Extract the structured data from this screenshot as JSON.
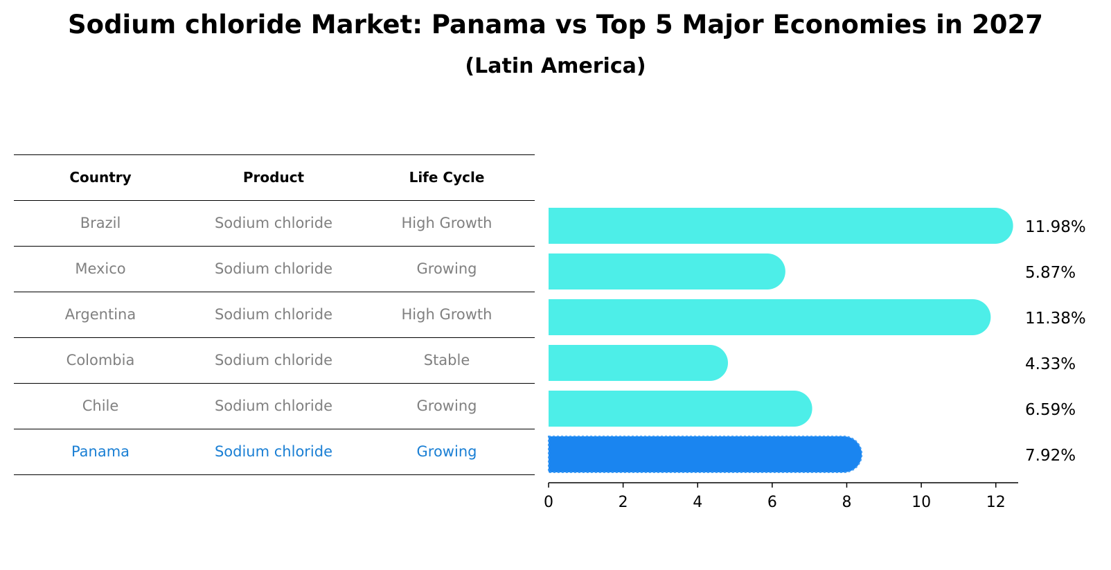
{
  "title": "Sodium chloride Market: Panama vs Top 5 Major Economies in 2027",
  "subtitle": "(Latin America)",
  "colors": {
    "bar": "#4deee8",
    "highlight_bar": "#1a85f0",
    "highlight_text": "#1a7fd4",
    "row_text": "#808080"
  },
  "table": {
    "headers": [
      "Country",
      "Product",
      "Life Cycle"
    ],
    "rows": [
      {
        "country": "Brazil",
        "product": "Sodium chloride",
        "life_cycle": "High Growth"
      },
      {
        "country": "Mexico",
        "product": "Sodium chloride",
        "life_cycle": "Growing"
      },
      {
        "country": "Argentina",
        "product": "Sodium chloride",
        "life_cycle": "High Growth"
      },
      {
        "country": "Colombia",
        "product": "Sodium chloride",
        "life_cycle": "Stable"
      },
      {
        "country": "Chile",
        "product": "Sodium chloride",
        "life_cycle": "Growing"
      },
      {
        "country": "Panama",
        "product": "Sodium chloride",
        "life_cycle": "Growing"
      }
    ]
  },
  "chart_data": {
    "type": "bar",
    "orientation": "horizontal",
    "categories": [
      "Brazil",
      "Mexico",
      "Argentina",
      "Colombia",
      "Chile",
      "Panama"
    ],
    "values": [
      11.98,
      5.87,
      11.38,
      4.33,
      6.59,
      7.92
    ],
    "value_labels": [
      "11.98%",
      "5.87%",
      "11.38%",
      "4.33%",
      "6.59%",
      "7.92%"
    ],
    "highlight": "Panama",
    "xlim": [
      0,
      12.6
    ],
    "xticks": [
      0,
      2,
      4,
      6,
      8,
      10,
      12
    ],
    "xtick_labels": [
      "0",
      "2",
      "4",
      "6",
      "8",
      "10",
      "12"
    ]
  }
}
